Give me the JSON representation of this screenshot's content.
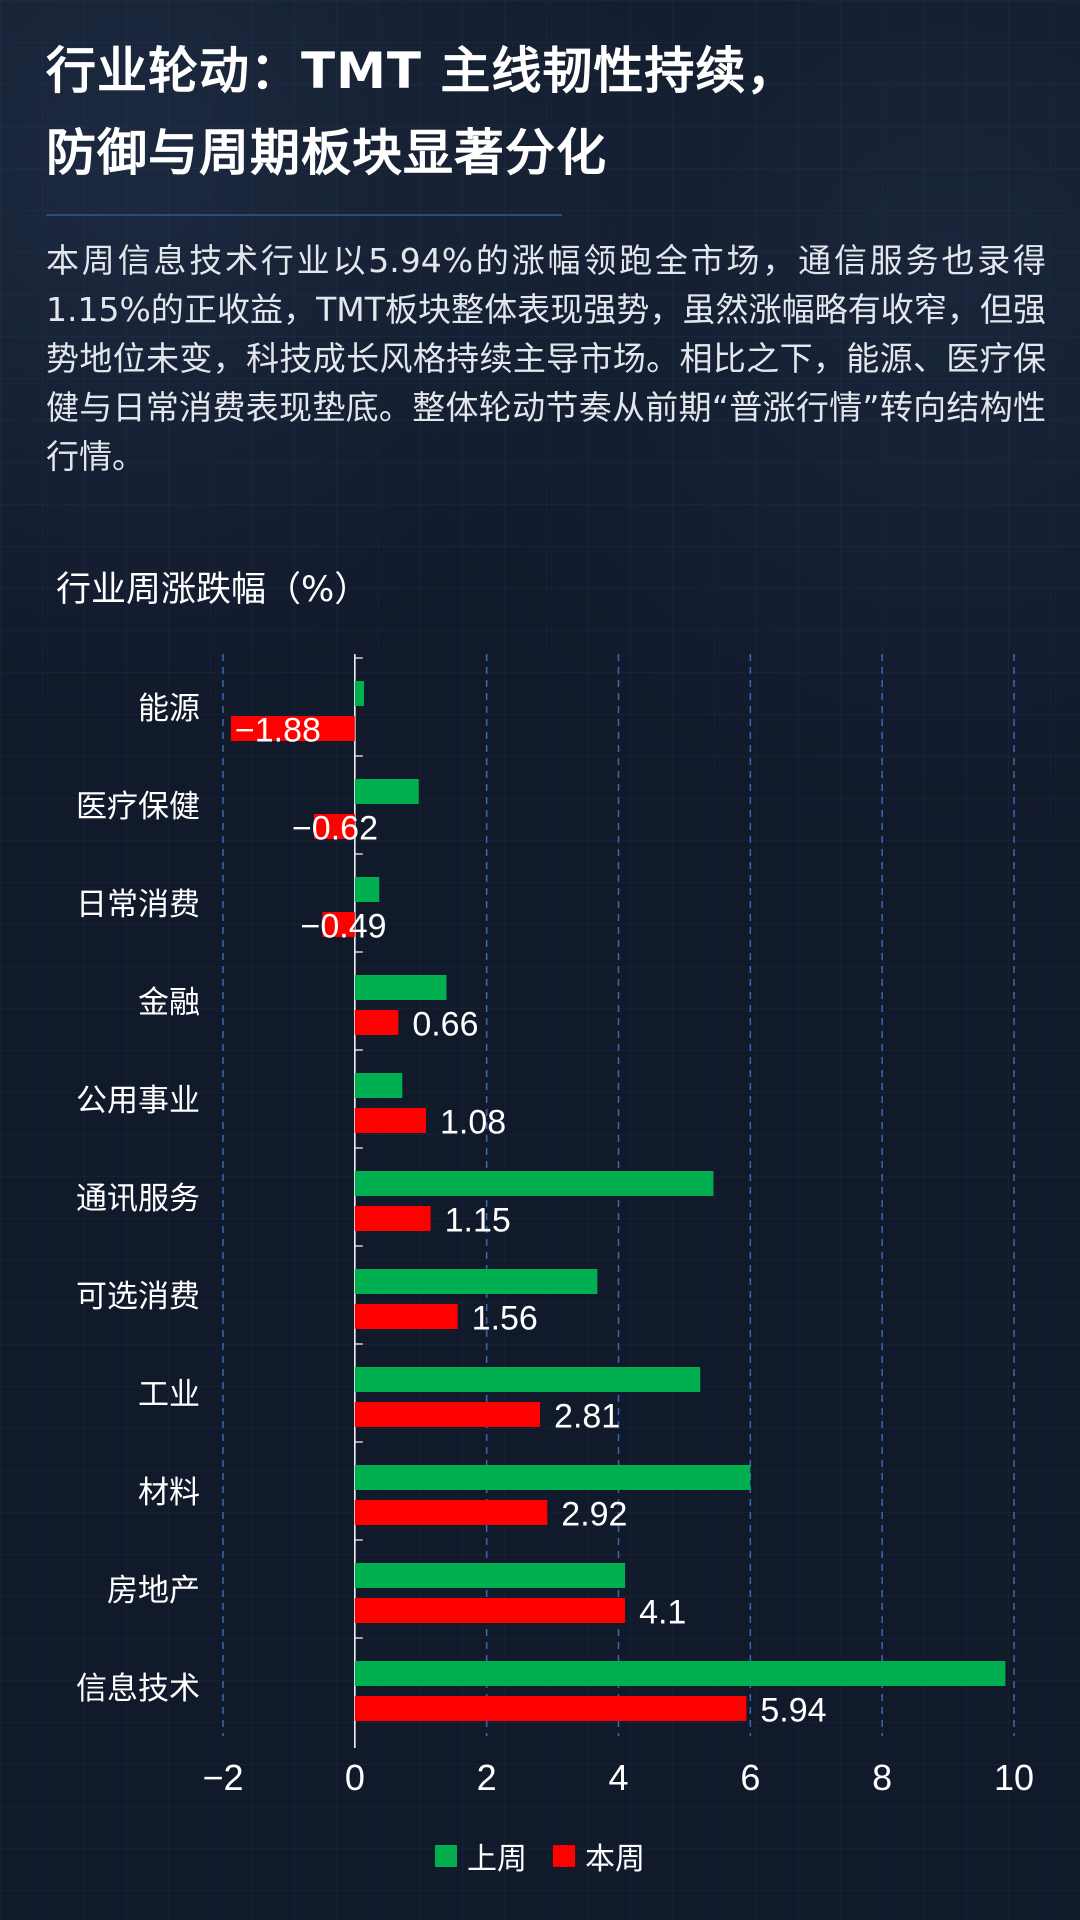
{
  "header": {
    "title_line1": "行业轮动：TMT 主线韧性持续，",
    "title_line2": "防御与周期板块显著分化"
  },
  "intro": {
    "text": "本周信息技术行业以5.94%的涨幅领跑全市场，通信服务也录得1.15%的正收益，TMT板块整体表现强势，虽然涨幅略有收窄，但强势地位未变，科技成长风格持续主导市场。相比之下，能源、医疗保健与日常消费表现垫底。整体轮动节奏从前期“普涨行情”转向结构性行情。"
  },
  "chart_data": {
    "type": "bar",
    "orientation": "horizontal",
    "title": "行业周涨跌幅（%）",
    "categories": [
      "能源",
      "医疗保健",
      "日常消费",
      "金融",
      "公用事业",
      "通讯服务",
      "可选消费",
      "工业",
      "材料",
      "房地产",
      "信息技术"
    ],
    "series": [
      {
        "name": "上周",
        "color": "#00b050",
        "values": [
          0.14,
          0.97,
          0.37,
          1.39,
          0.72,
          5.44,
          3.68,
          5.24,
          6.0,
          4.1,
          9.87
        ]
      },
      {
        "name": "本周",
        "color": "#ff0000",
        "values": [
          -1.88,
          -0.62,
          -0.49,
          0.66,
          1.08,
          1.15,
          1.56,
          2.81,
          2.92,
          4.1,
          5.94
        ],
        "data_labels": [
          "−1.88",
          "−0.62",
          "−0.49",
          "0.66",
          "1.08",
          "1.15",
          "1.56",
          "2.81",
          "2.92",
          "4.1",
          "5.94"
        ]
      }
    ],
    "xlim": [
      -2,
      10
    ],
    "xticks": [
      -2,
      0,
      2,
      4,
      6,
      8,
      10
    ],
    "xtick_labels": [
      "−2",
      "0",
      "2",
      "4",
      "6",
      "8",
      "10"
    ],
    "grid": "vertical dashed",
    "legend_position": "bottom"
  },
  "legend": {
    "items": [
      {
        "label": "上周",
        "color": "#00b050"
      },
      {
        "label": "本周",
        "color": "#ff0000"
      }
    ]
  }
}
